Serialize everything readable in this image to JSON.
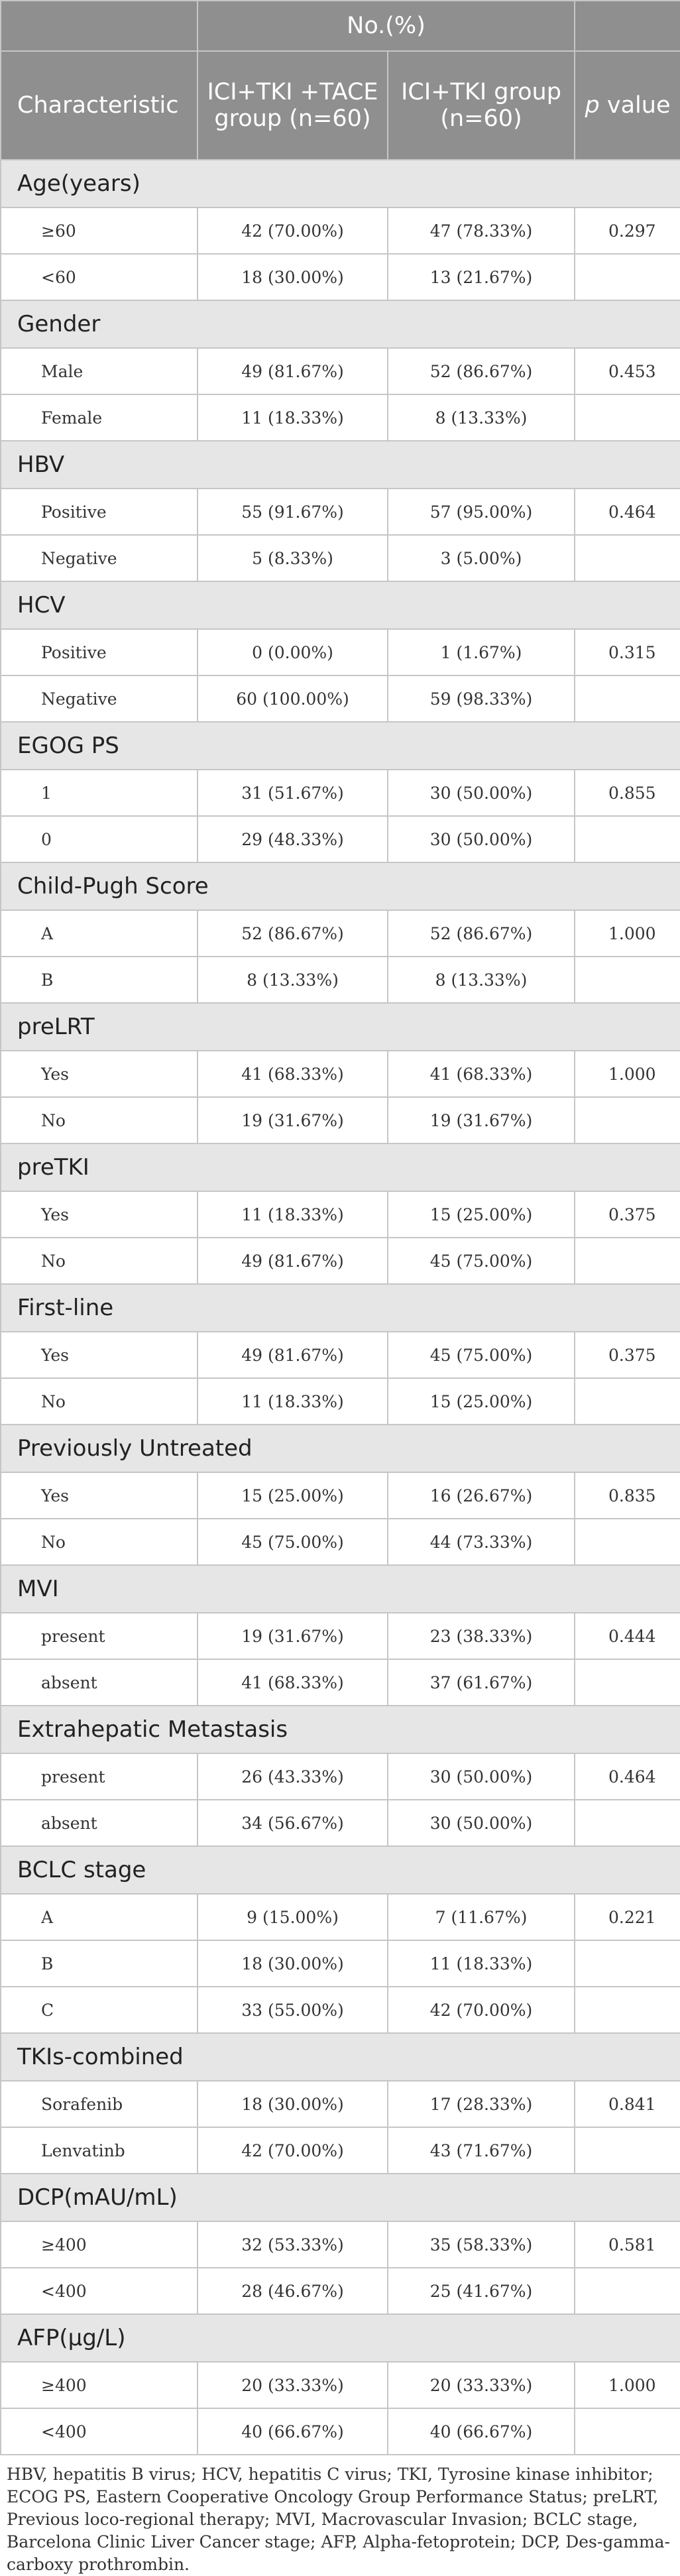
{
  "header": {
    "group_header": "No.(%)",
    "characteristic": "Characteristic",
    "group1": "ICI+TKI +TACE group (n=60)",
    "group2": "ICI+TKI group (n=60)",
    "p_italic": "p",
    "p_rest": " value"
  },
  "sections": [
    {
      "title": "Age(years)",
      "rows": [
        {
          "label": "≥60",
          "g1": "42 (70.00%)",
          "g2": "47 (78.33%)",
          "p": "0.297"
        },
        {
          "label": "<60",
          "g1": "18 (30.00%)",
          "g2": "13 (21.67%)",
          "p": ""
        }
      ]
    },
    {
      "title": "Gender",
      "rows": [
        {
          "label": "Male",
          "g1": "49 (81.67%)",
          "g2": "52 (86.67%)",
          "p": "0.453"
        },
        {
          "label": "Female",
          "g1": "11 (18.33%)",
          "g2": "8 (13.33%)",
          "p": ""
        }
      ]
    },
    {
      "title": "HBV",
      "rows": [
        {
          "label": "Positive",
          "g1": "55 (91.67%)",
          "g2": "57 (95.00%)",
          "p": "0.464"
        },
        {
          "label": "Negative",
          "g1": "5 (8.33%)",
          "g2": "3 (5.00%)",
          "p": ""
        }
      ]
    },
    {
      "title": "HCV",
      "rows": [
        {
          "label": "Positive",
          "g1": "0 (0.00%)",
          "g2": "1 (1.67%)",
          "p": "0.315"
        },
        {
          "label": "Negative",
          "g1": "60 (100.00%)",
          "g2": "59 (98.33%)",
          "p": ""
        }
      ]
    },
    {
      "title": "EGOG PS",
      "rows": [
        {
          "label": "1",
          "g1": "31 (51.67%)",
          "g2": "30 (50.00%)",
          "p": "0.855"
        },
        {
          "label": "0",
          "g1": "29 (48.33%)",
          "g2": "30 (50.00%)",
          "p": ""
        }
      ]
    },
    {
      "title": "Child-Pugh Score",
      "rows": [
        {
          "label": "A",
          "g1": "52 (86.67%)",
          "g2": "52 (86.67%)",
          "p": "1.000"
        },
        {
          "label": "B",
          "g1": "8 (13.33%)",
          "g2": "8 (13.33%)",
          "p": ""
        }
      ]
    },
    {
      "title": "preLRT",
      "rows": [
        {
          "label": "Yes",
          "g1": "41 (68.33%)",
          "g2": "41 (68.33%)",
          "p": "1.000"
        },
        {
          "label": "No",
          "g1": "19 (31.67%)",
          "g2": "19 (31.67%)",
          "p": ""
        }
      ]
    },
    {
      "title": "preTKI",
      "rows": [
        {
          "label": "Yes",
          "g1": "11 (18.33%)",
          "g2": "15 (25.00%)",
          "p": "0.375"
        },
        {
          "label": "No",
          "g1": "49 (81.67%)",
          "g2": "45 (75.00%)",
          "p": ""
        }
      ]
    },
    {
      "title": "First-line",
      "rows": [
        {
          "label": "Yes",
          "g1": "49 (81.67%)",
          "g2": "45 (75.00%)",
          "p": "0.375"
        },
        {
          "label": "No",
          "g1": "11 (18.33%)",
          "g2": "15 (25.00%)",
          "p": ""
        }
      ]
    },
    {
      "title": "Previously Untreated",
      "rows": [
        {
          "label": "Yes",
          "g1": "15 (25.00%)",
          "g2": "16 (26.67%)",
          "p": "0.835"
        },
        {
          "label": "No",
          "g1": "45 (75.00%)",
          "g2": "44 (73.33%)",
          "p": ""
        }
      ]
    },
    {
      "title": "MVI",
      "rows": [
        {
          "label": "present",
          "g1": "19 (31.67%)",
          "g2": "23 (38.33%)",
          "p": "0.444"
        },
        {
          "label": "absent",
          "g1": "41 (68.33%)",
          "g2": "37 (61.67%)",
          "p": ""
        }
      ]
    },
    {
      "title": "Extrahepatic Metastasis",
      "rows": [
        {
          "label": "present",
          "g1": "26 (43.33%)",
          "g2": "30 (50.00%)",
          "p": "0.464"
        },
        {
          "label": "absent",
          "g1": "34 (56.67%)",
          "g2": "30 (50.00%)",
          "p": ""
        }
      ]
    },
    {
      "title": "BCLC stage",
      "rows": [
        {
          "label": "A",
          "g1": "9 (15.00%)",
          "g2": "7 (11.67%)",
          "p": "0.221"
        },
        {
          "label": "B",
          "g1": "18 (30.00%)",
          "g2": "11 (18.33%)",
          "p": ""
        },
        {
          "label": "C",
          "g1": "33 (55.00%)",
          "g2": "42 (70.00%)",
          "p": ""
        }
      ]
    },
    {
      "title": "TKIs-combined",
      "rows": [
        {
          "label": "Sorafenib",
          "g1": "18 (30.00%)",
          "g2": "17 (28.33%)",
          "p": "0.841"
        },
        {
          "label": "Lenvatinb",
          "g1": "42 (70.00%)",
          "g2": "43 (71.67%)",
          "p": ""
        }
      ]
    },
    {
      "title": "DCP(mAU/mL)",
      "rows": [
        {
          "label": "≥400",
          "g1": "32 (53.33%)",
          "g2": "35 (58.33%)",
          "p": "0.581"
        },
        {
          "label": "<400",
          "g1": "28 (46.67%)",
          "g2": "25 (41.67%)",
          "p": ""
        }
      ]
    },
    {
      "title": "AFP(μg/L)",
      "rows": [
        {
          "label": "≥400",
          "g1": "20 (33.33%)",
          "g2": "20 (33.33%)",
          "p": "1.000"
        },
        {
          "label": "<400",
          "g1": "40 (66.67%)",
          "g2": "40 (66.67%)",
          "p": ""
        }
      ]
    }
  ],
  "footnote": "HBV, hepatitis B virus; HCV, hepatitis C virus; TKI, Tyrosine kinase inhibitor; ECOG PS, Eastern Cooperative Oncology Group Performance Status; preLRT, Previous loco-regional therapy; MVI, Macrovascular Invasion; BCLC stage, Barcelona Clinic Liver Cancer stage; AFP, Alpha-fetoprotein; DCP, Des-gamma-carboxy prothrombin."
}
